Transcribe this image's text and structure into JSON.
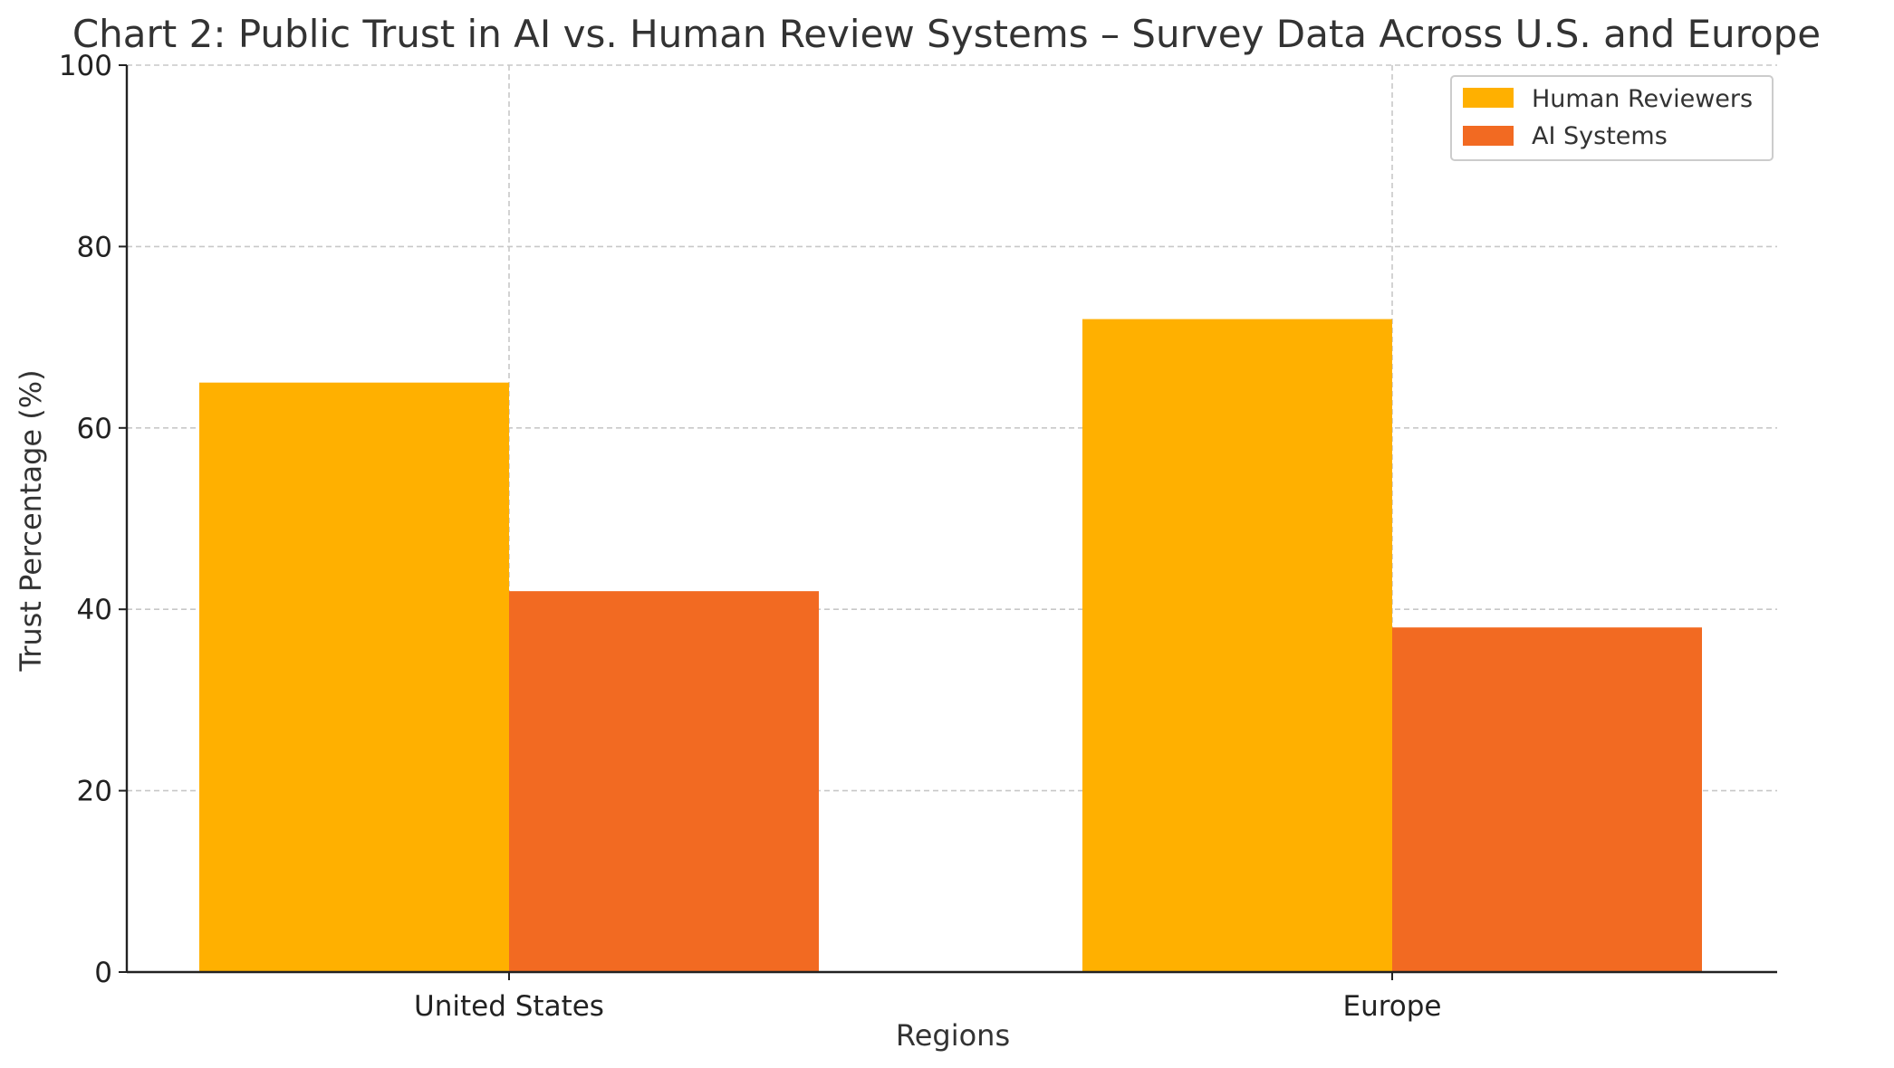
{
  "chart_data": {
    "type": "bar",
    "title": "Chart 2: Public Trust in AI vs. Human Review Systems – Survey Data Across U.S. and Europe",
    "xlabel": "Regions",
    "ylabel": "Trust Percentage (%)",
    "categories": [
      "United States",
      "Europe"
    ],
    "series": [
      {
        "name": "Human Reviewers",
        "values": [
          65,
          72
        ],
        "color": "#FFB000"
      },
      {
        "name": "AI Systems",
        "values": [
          42,
          38
        ],
        "color": "#F26A22"
      }
    ],
    "ylim": [
      0,
      100
    ],
    "yticks": [
      "0",
      "20",
      "40",
      "60",
      "80",
      "100"
    ],
    "grid": true,
    "legend_position": "top-right"
  }
}
